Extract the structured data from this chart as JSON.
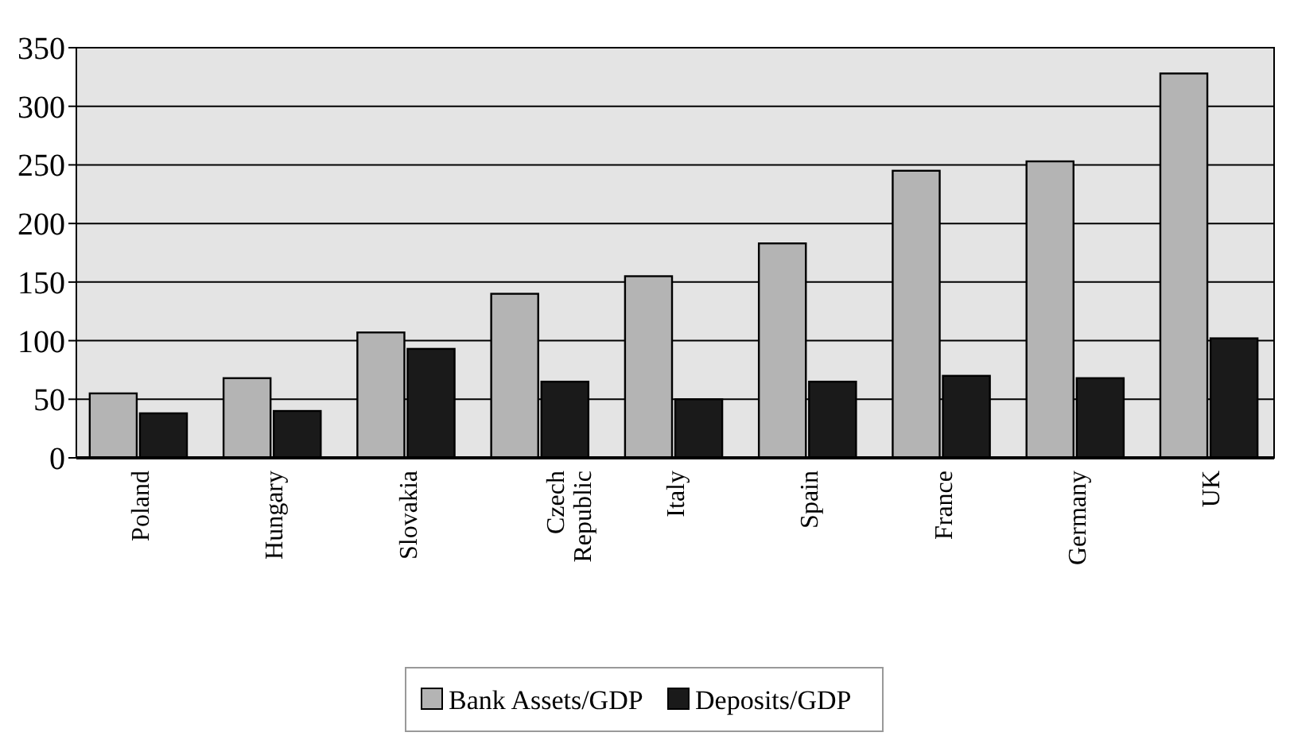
{
  "chart_data": {
    "type": "bar",
    "categories": [
      "Poland",
      "Hungary",
      "Slovakia",
      "Czech Republic",
      "Italy",
      "Spain",
      "France",
      "Germany",
      "UK"
    ],
    "series": [
      {
        "name": "Bank Assets/GDP",
        "color": "#b4b4b4",
        "values": [
          55,
          68,
          107,
          140,
          155,
          183,
          245,
          253,
          328
        ]
      },
      {
        "name": "Deposits/GDP",
        "color": "#1a1a1a",
        "values": [
          38,
          40,
          93,
          65,
          50,
          65,
          70,
          68,
          102
        ]
      }
    ],
    "ylim": [
      0,
      350
    ],
    "yticks": [
      0,
      50,
      100,
      150,
      200,
      250,
      300,
      350
    ],
    "grid": "y",
    "legend": "bottom"
  }
}
